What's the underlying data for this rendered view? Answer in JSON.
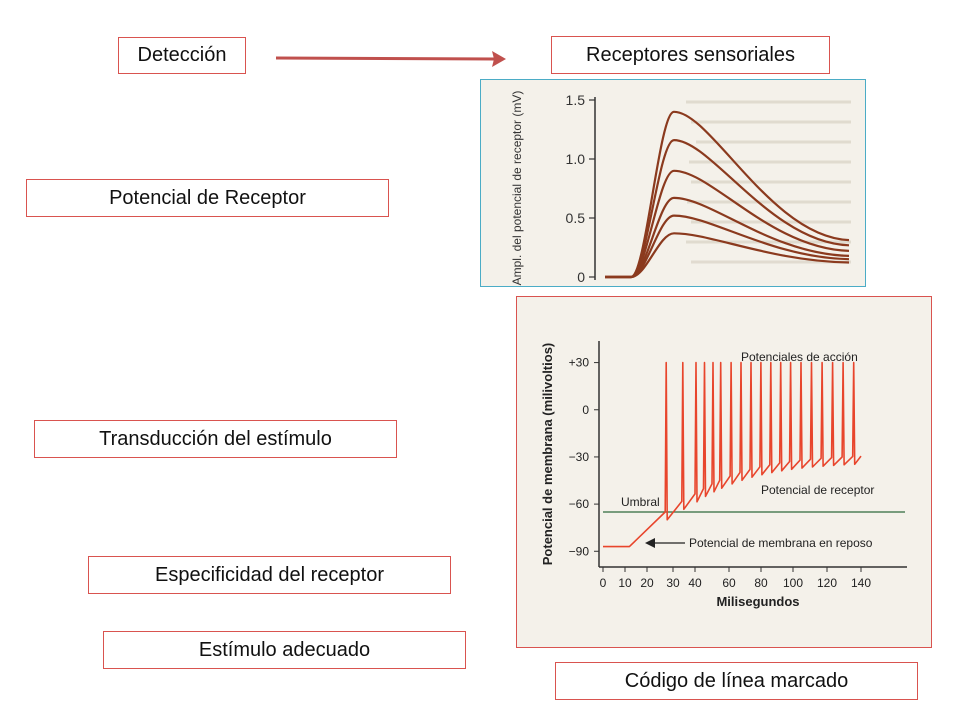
{
  "labels": {
    "deteccion": "Detección",
    "receptores": "Receptores sensoriales",
    "potencial_receptor": "Potencial de Receptor",
    "transduccion": "Transducción del estímulo",
    "especificidad": "Especificidad del receptor",
    "estimulo": "Estímulo adecuado",
    "codigo": "Código de línea marcado"
  },
  "colors": {
    "box_border": "#d9534f",
    "arrow": "#c0504d",
    "fig1_border": "#4bacc6",
    "fig2_border": "#d9534f",
    "fig1_curve": "#8b3a1e",
    "fig2_curve": "#e8452c"
  },
  "chart_data": [
    {
      "type": "line",
      "title": "",
      "ylabel": "Ampl. del potencial de receptor (mV)",
      "xlabel": "",
      "yticks": [
        "1.5",
        "1.0",
        "0.5",
        "0"
      ],
      "ylim": [
        0,
        1.5
      ],
      "series": [
        {
          "peak": 1.4
        },
        {
          "peak": 1.16
        },
        {
          "peak": 0.9
        },
        {
          "peak": 0.67
        },
        {
          "peak": 0.52
        },
        {
          "peak": 0.37
        }
      ]
    },
    {
      "type": "line",
      "ylabel": "Potencial de membrana (milivoltios)",
      "xlabel": "Milisegundos",
      "xticks": [
        "0",
        "10",
        "20",
        "30",
        "40",
        "60",
        "80",
        "100",
        "120",
        "140"
      ],
      "yticks": [
        "+30",
        "0",
        "−30",
        "−60",
        "−90"
      ],
      "ylim": [
        -100,
        45
      ],
      "threshold": -65,
      "resting": -87,
      "annotations": {
        "acciones": "Potenciales de acción",
        "receptor": "Potencial de receptor",
        "umbral": "Umbral",
        "reposo": "Potencial de membrana en reposo"
      }
    }
  ]
}
